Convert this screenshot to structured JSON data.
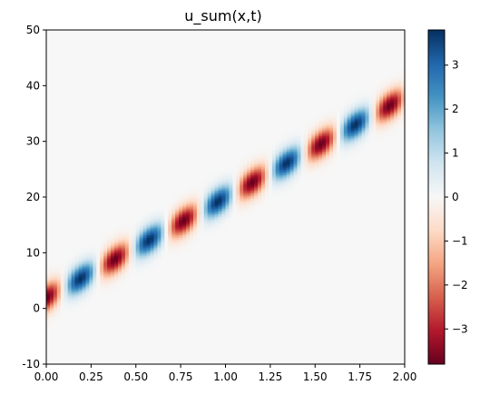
{
  "chart_data": {
    "type": "heatmap",
    "title": "u_sum(x,t)",
    "xlabel": "",
    "ylabel": "",
    "xlim": [
      0,
      2
    ],
    "ylim": [
      -10,
      50
    ],
    "x_ticks": [
      "0.00",
      "0.25",
      "0.50",
      "0.75",
      "1.00",
      "1.25",
      "1.50",
      "1.75",
      "2.00"
    ],
    "y_ticks": [
      "-10",
      "0",
      "10",
      "20",
      "30",
      "40",
      "50"
    ],
    "colorbar": {
      "colormap": "RdBu",
      "range": [
        -3.8,
        3.8
      ],
      "ticks": [
        "-3",
        "-2",
        "-1",
        "0",
        "1",
        "2",
        "3"
      ]
    },
    "field": {
      "description_of_values": "wave packet u(x,t) traveling along the line x = 2 + 18 t",
      "center_line": {
        "x_at_t0": 2.0,
        "slope": 18.0
      },
      "amplitude": 3.8,
      "wavelength_along_line": 6.9,
      "phase_at_t0_center": -1.0
    },
    "extremes_along_band": [
      {
        "t": 0.12,
        "x": 3.5,
        "u": -3.8
      },
      {
        "t": 0.3,
        "x": 6.7,
        "u": 3.8
      },
      {
        "t": 0.5,
        "x": 10.3,
        "u": -3.8
      },
      {
        "t": 0.68,
        "x": 13.8,
        "u": 3.8
      },
      {
        "t": 0.88,
        "x": 17.3,
        "u": -3.8
      },
      {
        "t": 1.05,
        "x": 20.7,
        "u": 3.8
      },
      {
        "t": 1.25,
        "x": 24.3,
        "u": -3.8
      },
      {
        "t": 1.45,
        "x": 27.7,
        "u": 3.8
      },
      {
        "t": 1.65,
        "x": 31.0,
        "u": -3.8
      },
      {
        "t": 1.82,
        "x": 34.5,
        "u": 3.8
      },
      {
        "t": 2.0,
        "x": 37.9,
        "u": -3.8
      }
    ]
  }
}
